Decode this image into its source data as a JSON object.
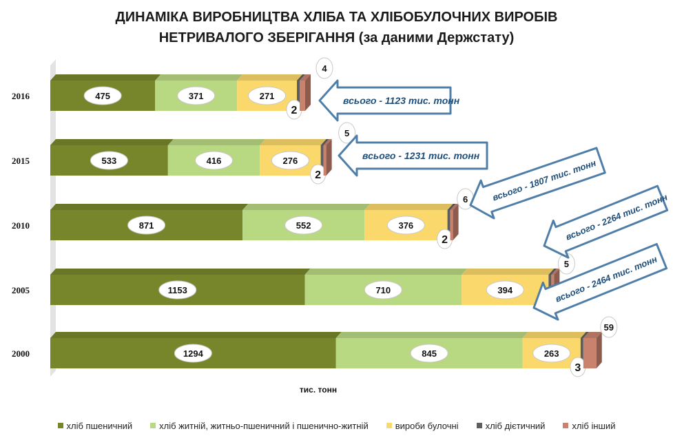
{
  "chart_data": {
    "type": "bar",
    "orientation": "horizontal",
    "stacked": true,
    "title_lines": [
      "ДИНАМІКА ВИРОБНИЦТВА ХЛІБА ТА ХЛІБОБУЛОЧНИХ ВИРОБІВ",
      "НЕТРИВАЛОГО ЗБЕРІГАННЯ (за даними Держстату)"
    ],
    "xlabel": "тис. тонн",
    "categories": [
      "2016",
      "2015",
      "2010",
      "2005",
      "2000"
    ],
    "series": [
      {
        "name": "хліб пшеничний",
        "color": "#77862a",
        "values": [
          475,
          533,
          871,
          1153,
          1294
        ]
      },
      {
        "name": "хліб житній, житньо-пшеничний і пшенично-житній",
        "color": "#b9d882",
        "values": [
          371,
          416,
          552,
          710,
          845
        ]
      },
      {
        "name": "вироби булочні",
        "color": "#fbd86b",
        "values": [
          271,
          276,
          376,
          394,
          263
        ]
      },
      {
        "name": "хліб дієтичний",
        "color": "#5e5e5e",
        "values": [
          2,
          2,
          2,
          2,
          3
        ]
      },
      {
        "name": "хліб інший",
        "color": "#c8826e",
        "values": [
          4,
          5,
          6,
          5,
          59
        ]
      }
    ],
    "totals": [
      "всього - 1123 тис. тонн",
      "всього - 1231 тис. тонн",
      "всього - 1807 тис. тонн",
      "всього -  2264 тис. тонн",
      "всього -  2464 тис. тонн"
    ],
    "xlim": [
      0,
      2500
    ],
    "grid": false,
    "legend_position": "bottom"
  }
}
